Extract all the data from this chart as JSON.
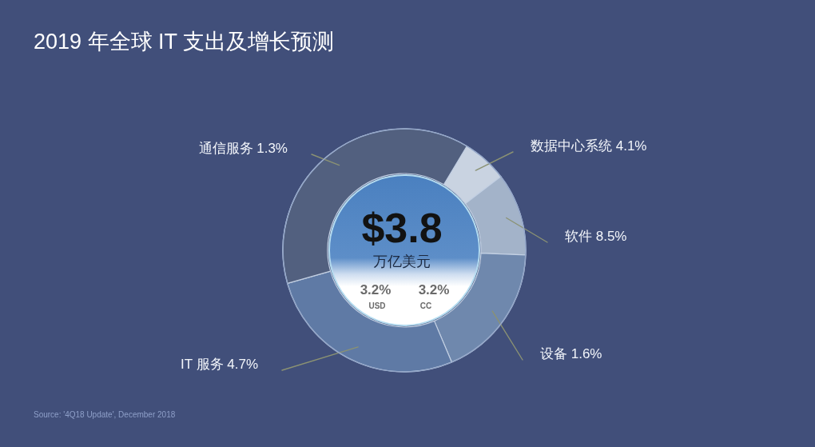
{
  "chart_data": {
    "type": "donut",
    "title": "2019 年全球 IT 支出及增长预测",
    "categories": [
      "数据中心系统 4.1%",
      "软件 8.5%",
      "设备 1.6%",
      "IT 服务 4.7%",
      "通信服务 1.3%"
    ],
    "values": [
      6,
      11,
      18,
      27,
      38
    ],
    "colors": [
      "#c9d3e1",
      "#a3b3c9",
      "#6f88ad",
      "#5f7aa5",
      "#52607f"
    ],
    "annotations": [
      "$3.8",
      "万亿美元",
      "3.2%",
      "USD",
      "3.2%",
      "CC",
      "Source: '4Q18 Update', December 2018"
    ]
  }
}
